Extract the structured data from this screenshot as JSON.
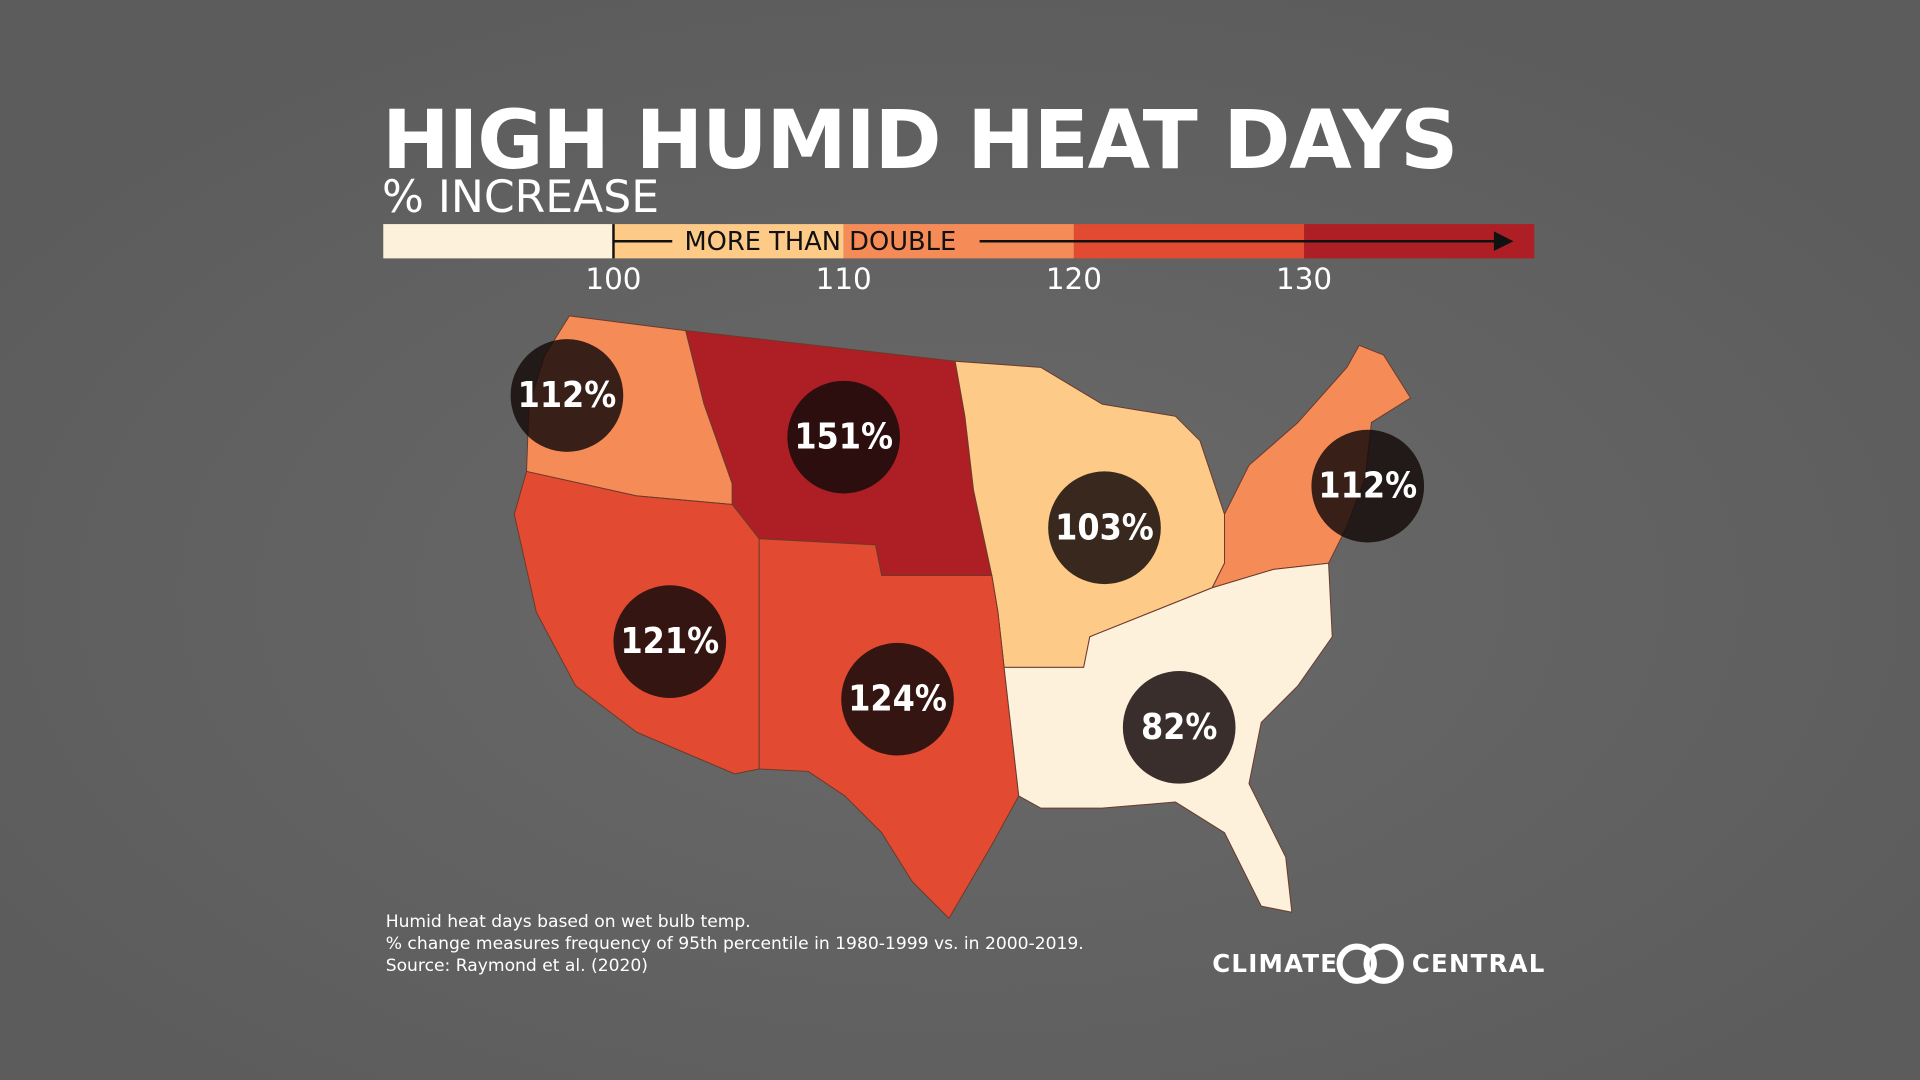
{
  "header": {
    "title": "HIGH HUMID HEAT DAYS",
    "subtitle": "% INCREASE"
  },
  "legend": {
    "lim": [
      90,
      140
    ],
    "ticks": [
      100,
      110,
      120,
      130
    ],
    "colors": [
      "#fdf1dc",
      "#fdca88",
      "#f58c58",
      "#e24b32",
      "#ad1f25"
    ],
    "arrow_label": "MORE THAN DOUBLE"
  },
  "regions": [
    {
      "value": 112,
      "label": "112%"
    },
    {
      "value": 151,
      "label": "151%"
    },
    {
      "value": 103,
      "label": "103%"
    },
    {
      "value": 112,
      "label": "112%"
    },
    {
      "value": 121,
      "label": "121%"
    },
    {
      "value": 124,
      "label": "124%"
    },
    {
      "value": 82,
      "label": "82%"
    }
  ],
  "notes": [
    "Humid heat days based on wet bulb temp.",
    "% change measures frequency of 95th percentile in 1980-1999 vs. in 2000-2019.",
    "Source: Raymond et al. (2020)"
  ],
  "logo": {
    "left": "CLIMATE",
    "right": "CENTRAL"
  }
}
